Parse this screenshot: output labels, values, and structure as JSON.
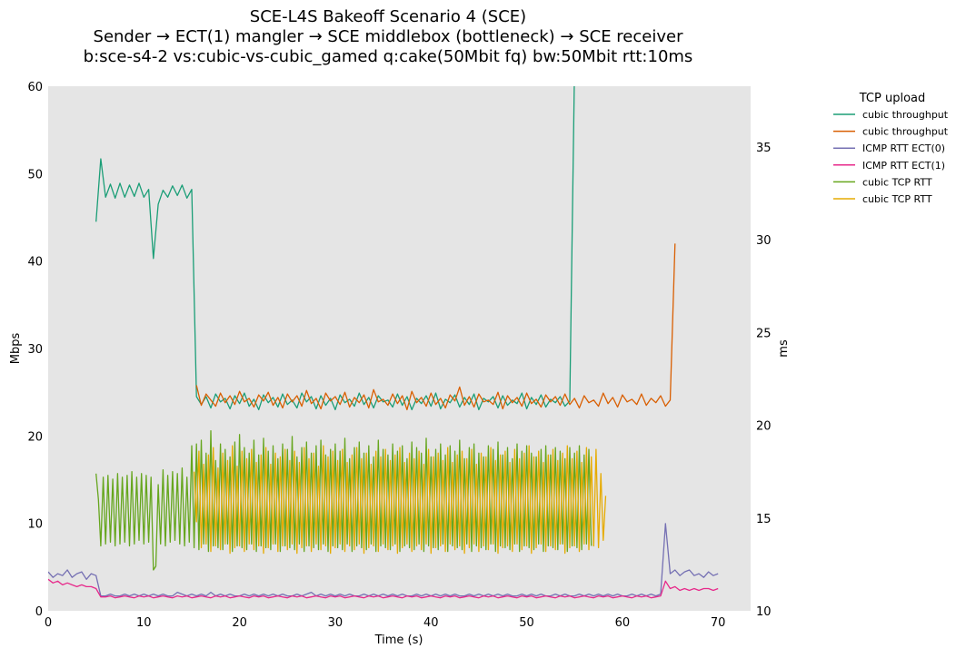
{
  "chart_data": {
    "type": "line",
    "title": [
      "SCE-L4S Bakeoff Scenario 4 (SCE)",
      "Sender → ECT(1) mangler → SCE middlebox (bottleneck) → SCE receiver",
      "b:sce-s4-2 vs:cubic-vs-cubic_gamed q:cake(50Mbit fq) bw:50Mbit rtt:10ms"
    ],
    "xlabel": "Time (s)",
    "ylabel": "Mbps",
    "y2label": "ms",
    "xlim": [
      0,
      73.4
    ],
    "ylim": [
      0,
      60
    ],
    "y2lim": [
      10,
      38.28
    ],
    "xticks": [
      0,
      10,
      20,
      30,
      40,
      50,
      60,
      70
    ],
    "yticks": [
      0,
      10,
      20,
      30,
      40,
      50,
      60
    ],
    "y2ticks": [
      10,
      15,
      20,
      25,
      30,
      35
    ],
    "grid": false,
    "background": "#e5e5e5",
    "legend": {
      "title": "TCP upload",
      "placement": "outside-right"
    },
    "series": [
      {
        "name": "cubic throughput",
        "color": "#1b9e77",
        "axis": "left",
        "x_start": 5,
        "x_step": 0.5,
        "values": [
          44.5,
          51.7,
          47.3,
          48.8,
          47.2,
          48.9,
          47.3,
          48.7,
          47.4,
          48.9,
          47.3,
          48.2,
          40.3,
          46.5,
          48.1,
          47.3,
          48.6,
          47.5,
          48.7,
          47.2,
          48.2,
          24.5,
          23.6,
          24.5,
          23.2,
          24.8,
          23.9,
          24.3,
          23.1,
          24.6,
          23.7,
          24.9,
          23.4,
          24.2,
          23.0,
          24.7,
          23.8,
          24.4,
          23.3,
          24.8,
          23.6,
          24.1,
          23.2,
          24.9,
          23.9,
          24.5,
          23.1,
          24.6,
          23.5,
          24.3,
          23.0,
          24.7,
          23.8,
          24.2,
          23.4,
          24.9,
          23.6,
          24.4,
          23.2,
          24.6,
          23.9,
          24.1,
          23.3,
          24.8,
          23.5,
          24.5,
          23.0,
          24.3,
          23.7,
          24.6,
          23.4,
          24.9,
          23.1,
          24.2,
          23.8,
          24.7,
          23.3,
          24.4,
          23.6,
          24.8,
          23.0,
          24.3,
          23.9,
          24.5,
          23.2,
          24.6,
          23.5,
          24.1,
          23.7,
          24.9,
          23.1,
          24.4,
          23.6,
          24.7,
          23.3,
          24.2,
          23.8,
          24.5,
          23.4,
          24.0,
          62
        ]
      },
      {
        "name": "cubic throughput",
        "color": "#d95f02",
        "axis": "left",
        "x_start": 15.5,
        "x_step": 0.5,
        "values": [
          25.8,
          23.5,
          24.8,
          24.1,
          23.4,
          24.9,
          23.8,
          24.6,
          23.6,
          25.1,
          23.9,
          24.3,
          23.3,
          24.7,
          24.0,
          25.0,
          23.5,
          24.4,
          23.2,
          24.8,
          23.9,
          24.6,
          23.4,
          25.2,
          23.7,
          24.3,
          23.1,
          24.9,
          24.0,
          24.5,
          23.6,
          25.0,
          23.3,
          24.4,
          23.8,
          24.7,
          23.2,
          25.3,
          23.9,
          24.2,
          23.5,
          24.8,
          23.7,
          24.6,
          23.0,
          25.1,
          23.8,
          24.4,
          23.4,
          24.9,
          23.6,
          24.3,
          23.2,
          24.7,
          24.0,
          25.6,
          23.5,
          24.5,
          23.3,
          24.8,
          23.9,
          24.1,
          23.6,
          25.0,
          23.1,
          24.6,
          23.8,
          24.4,
          23.4,
          24.9,
          23.7,
          24.2,
          23.3,
          24.7,
          23.9,
          24.5,
          23.5,
          24.8,
          23.6,
          24.3,
          23.2,
          24.6,
          23.8,
          24.1,
          23.4,
          24.9,
          23.7,
          24.4,
          23.3,
          24.7,
          23.9,
          24.2,
          23.6,
          24.8,
          23.5,
          24.3,
          23.8,
          24.6,
          23.4,
          24.1,
          42
        ]
      },
      {
        "name": "ICMP RTT ECT(0)",
        "color": "#7570b3",
        "axis": "right",
        "x_start": 0,
        "x_step": 0.5,
        "values": [
          12.1,
          11.8,
          12.0,
          11.9,
          12.2,
          11.8,
          12.0,
          12.1,
          11.7,
          12.0,
          11.9,
          10.8,
          10.8,
          10.9,
          10.8,
          10.8,
          10.9,
          10.8,
          10.9,
          10.8,
          10.9,
          10.8,
          10.9,
          10.8,
          10.9,
          10.8,
          10.8,
          11.0,
          10.9,
          10.8,
          10.9,
          10.8,
          10.9,
          10.8,
          11.0,
          10.8,
          10.9,
          10.8,
          10.9,
          10.8,
          10.8,
          10.9,
          10.8,
          10.9,
          10.8,
          10.9,
          10.8,
          10.9,
          10.8,
          10.9,
          10.8,
          10.8,
          10.9,
          10.8,
          10.9,
          11.0,
          10.8,
          10.9,
          10.8,
          10.9,
          10.8,
          10.9,
          10.8,
          10.9,
          10.8,
          10.8,
          10.9,
          10.8,
          10.9,
          10.8,
          10.9,
          10.8,
          10.9,
          10.8,
          10.9,
          10.8,
          10.8,
          10.9,
          10.8,
          10.9,
          10.8,
          10.9,
          10.8,
          10.9,
          10.8,
          10.9,
          10.8,
          10.8,
          10.9,
          10.8,
          10.9,
          10.8,
          10.9,
          10.8,
          10.9,
          10.8,
          10.9,
          10.8,
          10.8,
          10.9,
          10.8,
          10.9,
          10.8,
          10.9,
          10.8,
          10.8,
          10.9,
          10.8,
          10.9,
          10.8,
          10.8,
          10.9,
          10.8,
          10.9,
          10.8,
          10.9,
          10.8,
          10.9,
          10.8,
          10.9,
          10.8,
          10.8,
          10.9,
          10.8,
          10.9,
          10.8,
          10.9,
          10.8,
          10.9,
          14.7,
          12.0,
          12.2,
          11.9,
          12.1,
          12.2,
          11.9,
          12.0,
          11.8,
          12.1,
          11.9,
          12.0
        ]
      },
      {
        "name": "ICMP RTT ECT(1)",
        "color": "#e7298a",
        "axis": "right",
        "x_start": 0,
        "x_step": 0.5,
        "values": [
          11.7,
          11.5,
          11.6,
          11.4,
          11.5,
          11.4,
          11.3,
          11.4,
          11.3,
          11.3,
          11.2,
          10.75,
          10.75,
          10.8,
          10.7,
          10.75,
          10.8,
          10.75,
          10.7,
          10.8,
          10.75,
          10.8,
          10.7,
          10.75,
          10.8,
          10.75,
          10.7,
          10.8,
          10.75,
          10.8,
          10.7,
          10.75,
          10.8,
          10.75,
          10.7,
          10.8,
          10.75,
          10.8,
          10.7,
          10.75,
          10.8,
          10.75,
          10.7,
          10.8,
          10.75,
          10.8,
          10.7,
          10.75,
          10.8,
          10.75,
          10.7,
          10.8,
          10.75,
          10.8,
          10.7,
          10.75,
          10.8,
          10.75,
          10.7,
          10.8,
          10.75,
          10.8,
          10.7,
          10.75,
          10.8,
          10.75,
          10.7,
          10.8,
          10.75,
          10.8,
          10.7,
          10.75,
          10.8,
          10.75,
          10.7,
          10.8,
          10.75,
          10.8,
          10.7,
          10.75,
          10.8,
          10.75,
          10.7,
          10.8,
          10.75,
          10.8,
          10.7,
          10.75,
          10.8,
          10.75,
          10.7,
          10.8,
          10.75,
          10.8,
          10.7,
          10.75,
          10.8,
          10.75,
          10.7,
          10.8,
          10.75,
          10.8,
          10.7,
          10.75,
          10.8,
          10.75,
          10.7,
          10.8,
          10.75,
          10.8,
          10.7,
          10.75,
          10.8,
          10.75,
          10.7,
          10.8,
          10.75,
          10.8,
          10.7,
          10.75,
          10.8,
          10.75,
          10.7,
          10.8,
          10.75,
          10.8,
          10.7,
          10.75,
          10.8,
          11.6,
          11.2,
          11.3,
          11.1,
          11.2,
          11.1,
          11.2,
          11.1,
          11.2,
          11.2,
          11.1,
          11.2
        ]
      },
      {
        "name": "cubic TCP RTT",
        "color": "#66a61e",
        "axis": "right",
        "x_start": 5,
        "x_step": 0.25,
        "values": [
          17.4,
          16.0,
          13.5,
          17.2,
          13.6,
          17.3,
          13.7,
          17.1,
          13.5,
          17.4,
          13.6,
          17.2,
          13.7,
          17.3,
          13.5,
          17.5,
          13.6,
          17.2,
          13.8,
          17.4,
          13.6,
          17.3,
          13.7,
          17.2,
          12.2,
          12.4,
          16.8,
          13.6,
          17.6,
          13.5,
          17.3,
          13.7,
          17.5,
          13.8,
          17.4,
          13.6,
          17.7,
          13.5,
          17.2,
          13.7,
          18.9,
          13.4,
          19.0,
          13.3,
          19.2,
          13.6,
          18.5,
          13.2,
          19.7,
          13.5,
          18.1,
          13.4,
          19.0,
          13.3,
          18.7,
          13.6,
          18.3,
          13.2,
          19.1,
          13.5,
          19.5,
          13.4,
          18.8,
          13.3,
          18.5,
          13.6,
          19.2,
          13.2,
          18.4,
          13.5,
          19.3,
          13.4,
          18.6,
          13.3,
          18.9,
          13.6,
          18.2,
          13.2,
          19.0,
          13.5,
          18.7,
          13.4,
          19.4,
          13.3,
          18.3,
          13.6,
          18.8,
          13.2,
          19.1,
          13.5,
          18.5,
          13.4,
          18.9,
          13.3,
          19.2,
          13.6,
          18.4,
          13.2,
          18.7,
          13.5,
          19.0,
          13.4,
          18.6,
          13.3,
          19.3,
          13.6,
          18.2,
          13.2,
          18.8,
          13.5,
          19.1,
          13.4,
          18.5,
          13.3,
          18.9,
          13.6,
          18.3,
          13.2,
          19.2,
          13.5,
          18.7,
          13.4,
          18.4,
          13.3,
          19.0,
          13.6,
          18.6,
          13.2,
          18.9,
          13.5,
          18.2,
          13.4,
          19.1,
          13.3,
          18.8,
          13.6,
          18.5,
          13.2,
          19.3,
          13.5,
          18.3,
          13.4,
          18.7,
          13.3,
          19.0,
          13.6,
          18.4,
          13.2,
          18.9,
          13.5,
          18.6,
          13.4,
          19.2,
          13.3,
          18.2,
          13.6,
          18.8,
          13.2,
          19.0,
          13.5,
          18.5,
          13.4,
          18.3,
          13.3,
          18.9,
          13.6,
          18.7,
          13.2,
          19.1,
          13.5,
          18.4,
          13.4,
          18.8,
          13.3,
          18.2,
          13.6,
          19.0,
          13.2,
          18.6,
          13.5,
          18.9,
          13.4,
          18.5,
          13.3,
          18.3,
          13.6,
          18.7,
          13.2,
          18.9,
          13.5,
          18.4,
          13.4,
          18.8,
          13.3,
          18.6,
          13.6,
          18.2,
          13.2,
          18.8,
          13.5,
          18.5,
          13.4,
          18.9,
          13.3,
          18.4,
          13.6,
          18.7,
          13.5
        ]
      },
      {
        "name": "cubic TCP RTT",
        "color": "#e6ab02",
        "axis": "right",
        "x_start": 15.25,
        "x_step": 0.25,
        "values": [
          17.5,
          14.8,
          18.6,
          13.4,
          17.9,
          13.6,
          18.4,
          13.2,
          18.8,
          13.5,
          17.7,
          13.3,
          18.5,
          13.6,
          18.1,
          13.1,
          18.9,
          13.4,
          17.8,
          13.5,
          18.6,
          13.2,
          18.2,
          13.6,
          18.7,
          13.3,
          18.0,
          13.5,
          18.4,
          13.1,
          18.8,
          13.4,
          17.9,
          13.6,
          18.5,
          13.2,
          18.3,
          13.5,
          18.7,
          13.3,
          18.1,
          13.6,
          18.6,
          13.1,
          18.0,
          13.4,
          18.8,
          13.5,
          18.2,
          13.2,
          18.5,
          13.6,
          17.8,
          13.3,
          18.9,
          13.5,
          18.3,
          13.1,
          18.6,
          13.4,
          18.1,
          13.6,
          18.7,
          13.2,
          18.0,
          13.5,
          18.4,
          13.3,
          18.8,
          13.6,
          18.2,
          13.1,
          18.5,
          13.4,
          17.9,
          13.5,
          18.6,
          13.2,
          18.3,
          13.6,
          18.7,
          13.3,
          18.1,
          13.5,
          18.4,
          13.1,
          18.8,
          13.4,
          18.0,
          13.6,
          18.5,
          13.2,
          18.2,
          13.5,
          18.6,
          13.3,
          17.9,
          13.6,
          18.7,
          13.1,
          18.3,
          13.4,
          18.5,
          13.5,
          18.1,
          13.2,
          18.8,
          13.6,
          18.0,
          13.3,
          18.4,
          13.5,
          18.6,
          13.1,
          18.2,
          13.4,
          18.7,
          13.6,
          17.9,
          13.2,
          18.5,
          13.5,
          18.3,
          13.3,
          18.8,
          13.6,
          18.1,
          13.1,
          18.4,
          13.4,
          18.6,
          13.5,
          18.0,
          13.2,
          18.7,
          13.6,
          18.2,
          13.3,
          18.5,
          13.5,
          18.9,
          13.1,
          18.3,
          13.4,
          18.6,
          13.6,
          18.0,
          13.2,
          18.4,
          13.5,
          18.7,
          13.3,
          18.1,
          13.6,
          18.5,
          13.1,
          18.9,
          13.4,
          18.2,
          13.5,
          18.6,
          13.2,
          18.0,
          13.6,
          18.8,
          13.3,
          18.3,
          13.5,
          18.7,
          13.4,
          17.4,
          13.8,
          16.2
        ]
      }
    ]
  }
}
